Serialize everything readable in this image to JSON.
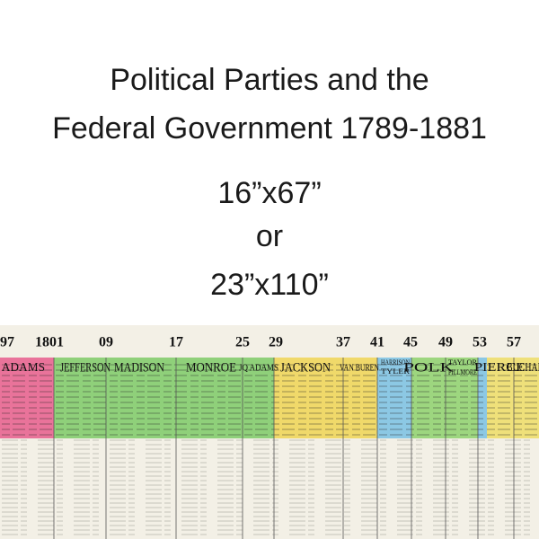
{
  "header": {
    "title_lines": [
      "Political Parties and the",
      "Federal Government 1789-1881"
    ]
  },
  "sizes": {
    "first": "16”x67”",
    "separator": "or",
    "second": "23”x110”"
  },
  "strip": {
    "years": [
      "97",
      "1801",
      "09",
      "17",
      "25",
      "29",
      "37",
      "41",
      "45",
      "49",
      "53",
      "57"
    ],
    "presidents": [
      "J ADAMS",
      "JEFFERSON",
      "MADISON",
      "MONROE",
      "JQ ADAMS",
      "JACKSON",
      "VAN BUREN",
      "HARRISON",
      "TYLER",
      "POLK",
      "TAYLOR",
      "FILLMORE",
      "PIERCE",
      "BUCHANAN"
    ]
  }
}
